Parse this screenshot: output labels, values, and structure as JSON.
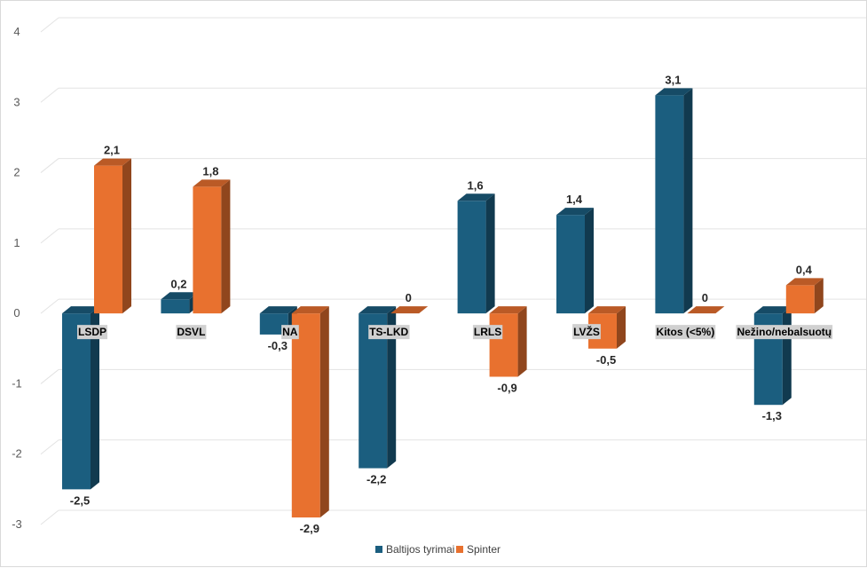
{
  "chart_data": {
    "type": "bar",
    "title": "",
    "xlabel": "",
    "ylabel": "",
    "ylim": [
      -3,
      4
    ],
    "yticks": [
      "4",
      "3",
      "2",
      "1",
      "0",
      "-1",
      "-2",
      "-3"
    ],
    "categories": [
      "LSDP",
      "DSVL",
      "NA",
      "TS-LKD",
      "LRLS",
      "LVŽS",
      "Kitos (<5%)",
      "Nežino/nebalsuotų"
    ],
    "series": [
      {
        "name": "Baltijos tyrimai",
        "values": [
          -2.5,
          0.2,
          -0.3,
          -2.2,
          1.6,
          1.4,
          3.1,
          -1.3
        ],
        "labels": [
          "-2,5",
          "0,2",
          "-0,3",
          "-2,2",
          "1,6",
          "1,4",
          "3,1",
          "-1,3"
        ],
        "color": "#1b5e7f"
      },
      {
        "name": "Spinter",
        "values": [
          2.1,
          1.8,
          -2.9,
          0,
          -0.9,
          -0.5,
          0,
          0.4
        ],
        "labels": [
          "2,1",
          "1,8",
          "-2,9",
          "0",
          "-0,9",
          "-0,5",
          "0",
          "0,4"
        ],
        "color": "#e8712f"
      }
    ],
    "legend": "bottom",
    "grid": true
  }
}
